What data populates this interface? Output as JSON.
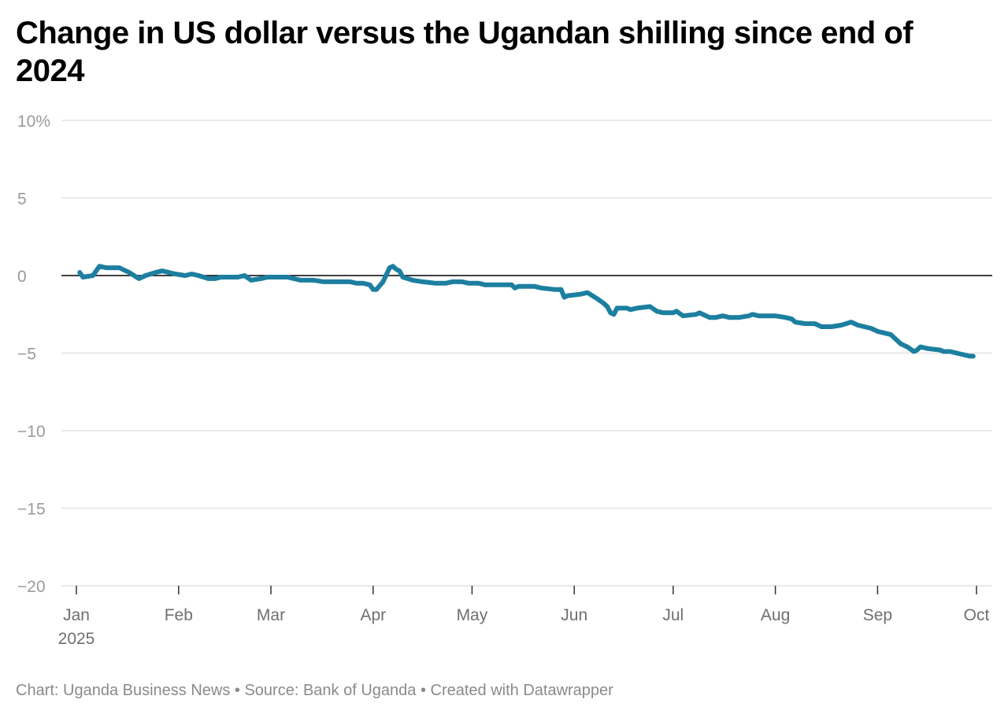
{
  "chart_data": {
    "type": "line",
    "title": "Change in US dollar versus the Ugandan shilling since end of 2024",
    "xlabel": "",
    "ylabel": "",
    "ylim": [
      -20,
      10
    ],
    "y_ticks": [
      {
        "value": 10,
        "label": "10%"
      },
      {
        "value": 5,
        "label": "5"
      },
      {
        "value": 0,
        "label": "0"
      },
      {
        "value": -5,
        "label": "−5"
      },
      {
        "value": -10,
        "label": "−10"
      },
      {
        "value": -15,
        "label": "−15"
      },
      {
        "value": -20,
        "label": "−20"
      }
    ],
    "x_ticks": [
      {
        "date": "2025-01-01",
        "label": "Jan",
        "sublabel": "2025"
      },
      {
        "date": "2025-02-01",
        "label": "Feb"
      },
      {
        "date": "2025-03-01",
        "label": "Mar"
      },
      {
        "date": "2025-04-01",
        "label": "Apr"
      },
      {
        "date": "2025-05-01",
        "label": "May"
      },
      {
        "date": "2025-06-01",
        "label": "Jun"
      },
      {
        "date": "2025-07-01",
        "label": "Jul"
      },
      {
        "date": "2025-08-01",
        "label": "Aug"
      },
      {
        "date": "2025-09-01",
        "label": "Sep"
      },
      {
        "date": "2025-10-01",
        "label": "Oct"
      }
    ],
    "xlim": [
      "2025-01-01",
      "2025-10-01"
    ],
    "grid": true,
    "series_color": "#1d7fa0",
    "series": [
      {
        "name": "",
        "points": [
          [
            "2025-01-02",
            0.2
          ],
          [
            "2025-01-03",
            -0.1
          ],
          [
            "2025-01-06",
            0.0
          ],
          [
            "2025-01-08",
            0.6
          ],
          [
            "2025-01-10",
            0.5
          ],
          [
            "2025-01-14",
            0.5
          ],
          [
            "2025-01-17",
            0.2
          ],
          [
            "2025-01-20",
            -0.2
          ],
          [
            "2025-01-22",
            0.0
          ],
          [
            "2025-01-25",
            0.2
          ],
          [
            "2025-01-27",
            0.3
          ],
          [
            "2025-01-29",
            0.2
          ],
          [
            "2025-01-31",
            0.1
          ],
          [
            "2025-02-03",
            0.0
          ],
          [
            "2025-02-05",
            0.1
          ],
          [
            "2025-02-07",
            0.0
          ],
          [
            "2025-02-10",
            -0.2
          ],
          [
            "2025-02-12",
            -0.2
          ],
          [
            "2025-02-14",
            -0.1
          ],
          [
            "2025-02-17",
            -0.1
          ],
          [
            "2025-02-19",
            -0.1
          ],
          [
            "2025-02-21",
            0.0
          ],
          [
            "2025-02-23",
            -0.3
          ],
          [
            "2025-02-26",
            -0.2
          ],
          [
            "2025-02-28",
            -0.1
          ],
          [
            "2025-03-03",
            -0.1
          ],
          [
            "2025-03-06",
            -0.1
          ],
          [
            "2025-03-10",
            -0.3
          ],
          [
            "2025-03-14",
            -0.3
          ],
          [
            "2025-03-17",
            -0.4
          ],
          [
            "2025-03-21",
            -0.4
          ],
          [
            "2025-03-25",
            -0.4
          ],
          [
            "2025-03-27",
            -0.5
          ],
          [
            "2025-03-29",
            -0.5
          ],
          [
            "2025-03-31",
            -0.6
          ],
          [
            "2025-04-01",
            -0.9
          ],
          [
            "2025-04-02",
            -0.9
          ],
          [
            "2025-04-04",
            -0.4
          ],
          [
            "2025-04-06",
            0.5
          ],
          [
            "2025-04-07",
            0.6
          ],
          [
            "2025-04-08",
            0.4
          ],
          [
            "2025-04-09",
            0.3
          ],
          [
            "2025-04-10",
            -0.1
          ],
          [
            "2025-04-13",
            -0.3
          ],
          [
            "2025-04-16",
            -0.4
          ],
          [
            "2025-04-20",
            -0.5
          ],
          [
            "2025-04-23",
            -0.5
          ],
          [
            "2025-04-25",
            -0.4
          ],
          [
            "2025-04-28",
            -0.4
          ],
          [
            "2025-04-30",
            -0.5
          ],
          [
            "2025-05-03",
            -0.5
          ],
          [
            "2025-05-05",
            -0.6
          ],
          [
            "2025-05-10",
            -0.6
          ],
          [
            "2025-05-13",
            -0.6
          ],
          [
            "2025-05-14",
            -0.8
          ],
          [
            "2025-05-15",
            -0.7
          ],
          [
            "2025-05-20",
            -0.7
          ],
          [
            "2025-05-22",
            -0.8
          ],
          [
            "2025-05-26",
            -0.9
          ],
          [
            "2025-05-28",
            -0.9
          ],
          [
            "2025-05-29",
            -1.4
          ],
          [
            "2025-05-30",
            -1.3
          ],
          [
            "2025-06-03",
            -1.2
          ],
          [
            "2025-06-05",
            -1.1
          ],
          [
            "2025-06-08",
            -1.5
          ],
          [
            "2025-06-10",
            -1.8
          ],
          [
            "2025-06-11",
            -2.0
          ],
          [
            "2025-06-12",
            -2.4
          ],
          [
            "2025-06-13",
            -2.5
          ],
          [
            "2025-06-14",
            -2.1
          ],
          [
            "2025-06-17",
            -2.1
          ],
          [
            "2025-06-18",
            -2.2
          ],
          [
            "2025-06-20",
            -2.1
          ],
          [
            "2025-06-24",
            -2.0
          ],
          [
            "2025-06-26",
            -2.3
          ],
          [
            "2025-06-28",
            -2.4
          ],
          [
            "2025-07-01",
            -2.4
          ],
          [
            "2025-07-02",
            -2.3
          ],
          [
            "2025-07-04",
            -2.6
          ],
          [
            "2025-07-08",
            -2.5
          ],
          [
            "2025-07-09",
            -2.4
          ],
          [
            "2025-07-12",
            -2.7
          ],
          [
            "2025-07-14",
            -2.7
          ],
          [
            "2025-07-16",
            -2.6
          ],
          [
            "2025-07-18",
            -2.7
          ],
          [
            "2025-07-21",
            -2.7
          ],
          [
            "2025-07-24",
            -2.6
          ],
          [
            "2025-07-25",
            -2.5
          ],
          [
            "2025-07-27",
            -2.6
          ],
          [
            "2025-08-01",
            -2.6
          ],
          [
            "2025-08-04",
            -2.7
          ],
          [
            "2025-08-06",
            -2.8
          ],
          [
            "2025-08-07",
            -3.0
          ],
          [
            "2025-08-10",
            -3.1
          ],
          [
            "2025-08-13",
            -3.1
          ],
          [
            "2025-08-15",
            -3.3
          ],
          [
            "2025-08-18",
            -3.3
          ],
          [
            "2025-08-21",
            -3.2
          ],
          [
            "2025-08-24",
            -3.0
          ],
          [
            "2025-08-26",
            -3.2
          ],
          [
            "2025-08-28",
            -3.3
          ],
          [
            "2025-08-30",
            -3.4
          ],
          [
            "2025-09-01",
            -3.6
          ],
          [
            "2025-09-03",
            -3.7
          ],
          [
            "2025-09-05",
            -3.8
          ],
          [
            "2025-09-07",
            -4.2
          ],
          [
            "2025-09-08",
            -4.4
          ],
          [
            "2025-09-10",
            -4.6
          ],
          [
            "2025-09-12",
            -4.9
          ],
          [
            "2025-09-13",
            -4.8
          ],
          [
            "2025-09-14",
            -4.6
          ],
          [
            "2025-09-16",
            -4.7
          ],
          [
            "2025-09-20",
            -4.8
          ],
          [
            "2025-09-21",
            -4.9
          ],
          [
            "2025-09-23",
            -4.9
          ],
          [
            "2025-09-25",
            -5.0
          ],
          [
            "2025-09-27",
            -5.1
          ],
          [
            "2025-09-29",
            -5.2
          ],
          [
            "2025-09-30",
            -5.2
          ]
        ]
      }
    ]
  },
  "footer": {
    "text": "Chart: Uganda Business News • Source: Bank of Uganda • Created with Datawrapper"
  }
}
